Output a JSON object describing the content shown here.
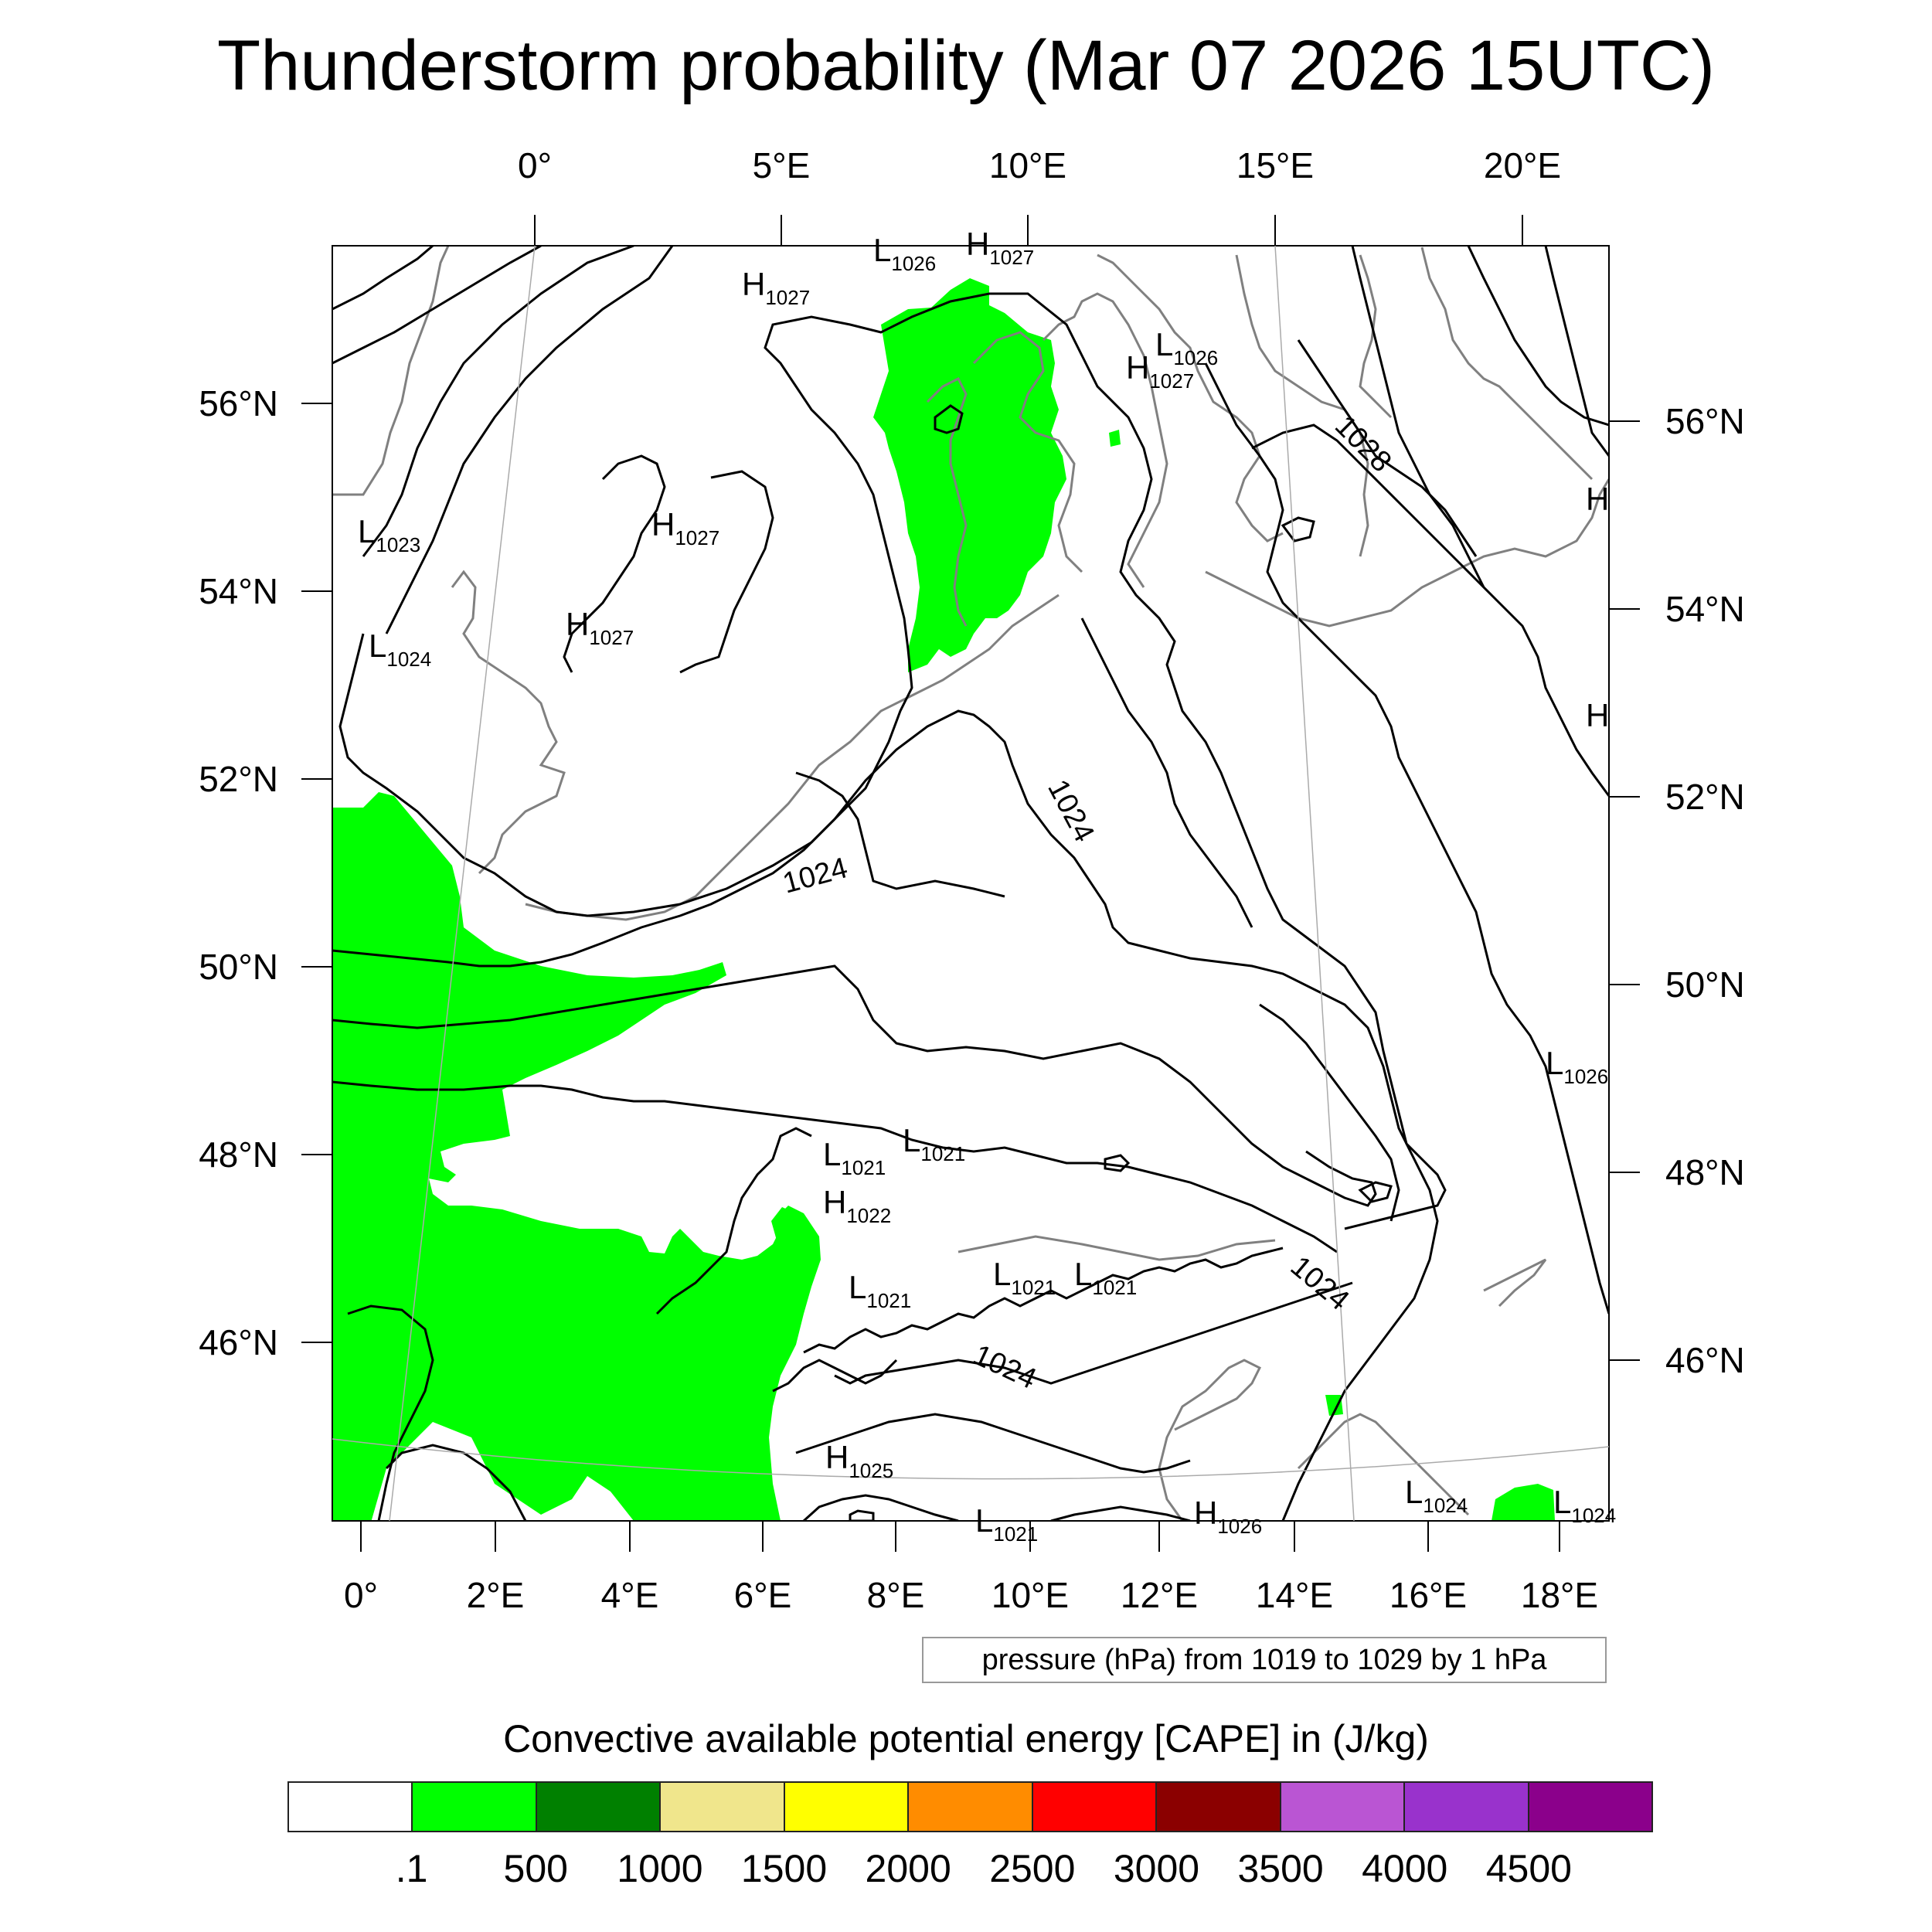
{
  "title": "Thunderstorm probability (Mar 07 2026 15UTC)",
  "colors": {
    "cape_green": "#00ff00",
    "coastline": "#808080",
    "isobar": "#000000",
    "frame": "#000000"
  },
  "axes": {
    "top_lon_labels": [
      "0°",
      "5°E",
      "10°E",
      "15°E",
      "20°E"
    ],
    "bottom_lon_labels": [
      "0°",
      "2°E",
      "4°E",
      "6°E",
      "8°E",
      "10°E",
      "12°E",
      "14°E",
      "16°E",
      "18°E"
    ],
    "left_lat_labels": [
      "56°N",
      "54°N",
      "52°N",
      "50°N",
      "48°N",
      "46°N"
    ],
    "right_lat_labels": [
      "56°N",
      "54°N",
      "52°N",
      "50°N",
      "48°N",
      "46°N"
    ]
  },
  "isobar_labels": [
    "1028",
    "1024",
    "1024",
    "1024",
    "1024"
  ],
  "pressure_centers": [
    {
      "type": "H",
      "value": "1027"
    },
    {
      "type": "L",
      "value": "1026"
    },
    {
      "type": "H",
      "value": "1027"
    },
    {
      "type": "L",
      "value": "1026"
    },
    {
      "type": "H",
      "value": "1027"
    },
    {
      "type": "H",
      "value": "1027"
    },
    {
      "type": "H",
      "value": "1027"
    },
    {
      "type": "L",
      "value": "1023"
    },
    {
      "type": "L",
      "value": "1024"
    },
    {
      "type": "L",
      "value": "1026"
    },
    {
      "type": "L",
      "value": "1021"
    },
    {
      "type": "L",
      "value": "1021"
    },
    {
      "type": "H",
      "value": "1022"
    },
    {
      "type": "L",
      "value": "1021"
    },
    {
      "type": "L",
      "value": "1021"
    },
    {
      "type": "L",
      "value": "1021"
    },
    {
      "type": "H",
      "value": "1025"
    },
    {
      "type": "L",
      "value": "1024"
    },
    {
      "type": "L",
      "value": "1024"
    },
    {
      "type": "L",
      "value": "1021"
    },
    {
      "type": "H",
      "value": "1026"
    }
  ],
  "partial_labels": [
    "H",
    "H"
  ],
  "pressure_note": "pressure (hPa) from 1019 to 1029 by 1 hPa",
  "cape": {
    "title": "Convective available potential energy [CAPE] in (J/kg)",
    "levels": [
      ".1",
      "500",
      "1000",
      "1500",
      "2000",
      "2500",
      "3000",
      "3500",
      "4000",
      "4500"
    ],
    "colors": [
      "#ffffff",
      "#00ff00",
      "#008000",
      "#f0e68c",
      "#ffff00",
      "#ff8c00",
      "#ff0000",
      "#8b0000",
      "#ba55d3",
      "#9932cc",
      "#8b008b"
    ]
  }
}
